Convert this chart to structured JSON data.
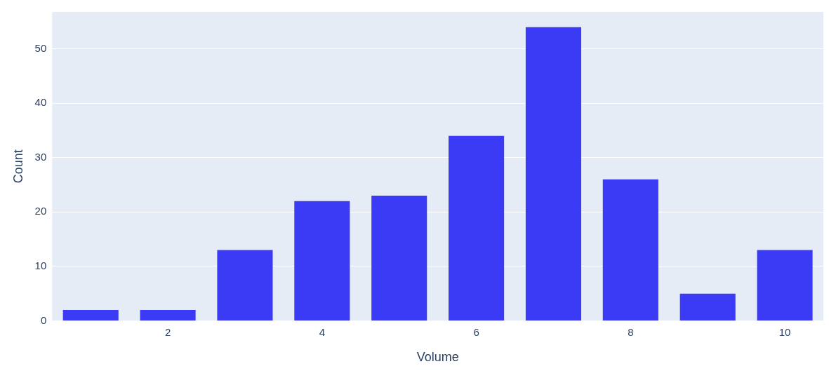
{
  "chart_data": {
    "type": "bar",
    "xlabel": "Volume",
    "ylabel": "Count",
    "x": [
      1,
      2,
      3,
      4,
      5,
      6,
      7,
      8,
      9,
      10
    ],
    "values": [
      2,
      2,
      13,
      22,
      23,
      34,
      54,
      26,
      5,
      13
    ],
    "color": "#3b3bf6",
    "xlim": [
      0.5,
      10.5
    ],
    "xticks": [
      2,
      4,
      6,
      8,
      10
    ],
    "ylim": [
      0,
      56.8
    ],
    "yticks": [
      0,
      10,
      20,
      30,
      40,
      50
    ],
    "grid": "y",
    "legend": false
  }
}
